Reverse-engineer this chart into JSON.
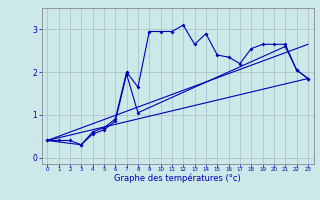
{
  "xlabel": "Graphe des températures (°c)",
  "background_color": "#cce8e8",
  "grid_color": "#aabbcc",
  "line_color": "#0000bb",
  "xlim": [
    -0.5,
    23.5
  ],
  "ylim": [
    -0.15,
    3.5
  ],
  "yticks": [
    0,
    1,
    2,
    3
  ],
  "xticks": [
    0,
    1,
    2,
    3,
    4,
    5,
    6,
    7,
    8,
    9,
    10,
    11,
    12,
    13,
    14,
    15,
    16,
    17,
    18,
    19,
    20,
    21,
    22,
    23
  ],
  "series1_x": [
    0,
    1,
    2,
    3,
    4,
    5,
    6,
    7,
    8,
    9,
    10,
    11,
    12,
    13,
    14,
    15,
    16,
    17,
    18,
    19,
    20,
    21,
    22,
    23
  ],
  "series1_y": [
    0.4,
    0.4,
    0.4,
    0.3,
    0.6,
    0.7,
    0.9,
    2.0,
    1.65,
    2.95,
    2.95,
    2.95,
    3.1,
    2.65,
    2.9,
    2.4,
    2.35,
    2.2,
    2.55,
    2.65,
    2.65,
    2.65,
    2.05,
    1.85
  ],
  "series2_x": [
    0,
    3,
    4,
    5,
    6,
    7,
    8,
    21,
    22,
    23
  ],
  "series2_y": [
    0.4,
    0.3,
    0.55,
    0.65,
    0.85,
    1.95,
    1.05,
    2.6,
    2.05,
    1.85
  ],
  "series3_x": [
    0,
    23
  ],
  "series3_y": [
    0.4,
    1.85
  ],
  "series4_x": [
    0,
    23
  ],
  "series4_y": [
    0.4,
    2.65
  ]
}
